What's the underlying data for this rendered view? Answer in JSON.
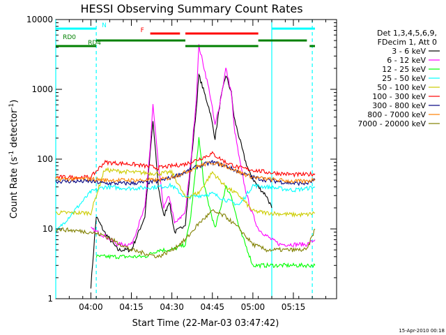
{
  "title": "HESSI Observing Summary Count Rates",
  "footer_date": "15-Apr-2010 00:18",
  "chart_data": {
    "type": "line",
    "title": "HESSI Observing Summary Count Rates",
    "xlabel": "Start Time (22-Mar-03 03:47:42)",
    "ylabel": "Count Rate (s⁻¹ detector⁻¹)",
    "ylabel_main": "Count Rate (s",
    "ylabel_sup1": "-1",
    "ylabel_mid": " detector",
    "ylabel_sup2": "-1",
    "ylabel_end": ")",
    "yscale": "log",
    "ylim": [
      1,
      10000
    ],
    "xlim_minutes_from_0347": [
      0,
      104
    ],
    "x_ticks": [
      "04:00",
      "04:15",
      "04:30",
      "04:45",
      "05:00",
      "05:15"
    ],
    "y_ticks": [
      "1",
      "10",
      "100",
      "1000",
      "10000"
    ],
    "legend_header": [
      "Det 1,3,4,5,6,9,",
      "FDecim 1, Att 0"
    ],
    "series": [
      {
        "name": "3 - 6 keV",
        "color": "#000000",
        "x": [
          "03:47",
          "03:55",
          "03:58",
          "04:00",
          "04:02",
          "04:05",
          "04:10",
          "04:15",
          "04:20",
          "04:23",
          "04:25",
          "04:27",
          "04:29",
          "04:31",
          "04:33",
          "04:35",
          "04:37",
          "04:39",
          "04:40",
          "04:42",
          "04:44",
          "04:46",
          "04:48",
          "04:50",
          "04:52",
          "04:53",
          "04:55",
          "04:57",
          "04:59",
          "05:02",
          "05:05",
          "05:07"
        ],
        "y": [
          null,
          null,
          null,
          1.5,
          15,
          9,
          5,
          5,
          15,
          350,
          40,
          15,
          25,
          9,
          10,
          12,
          80,
          500,
          1600,
          900,
          500,
          200,
          700,
          1600,
          900,
          400,
          200,
          100,
          60,
          40,
          30,
          20
        ]
      },
      {
        "name": "6 - 12 keV",
        "color": "#ff00ff",
        "x": [
          "04:00",
          "04:05",
          "04:10",
          "04:15",
          "04:20",
          "04:22",
          "04:23",
          "04:25",
          "04:27",
          "04:29",
          "04:31",
          "04:33",
          "04:35",
          "04:37",
          "04:39",
          "04:40",
          "04:42",
          "04:44",
          "04:46",
          "04:48",
          "04:50",
          "04:52",
          "04:53",
          "04:55",
          "04:57",
          "04:59",
          "05:02",
          "05:05",
          "05:07",
          "05:10",
          "05:15",
          "05:20",
          "05:23"
        ],
        "y": [
          10,
          8,
          6,
          6,
          20,
          150,
          600,
          80,
          20,
          30,
          12,
          14,
          18,
          90,
          700,
          4200,
          2000,
          900,
          300,
          700,
          2000,
          900,
          300,
          100,
          40,
          20,
          10,
          8,
          7,
          6,
          6,
          6,
          7
        ]
      },
      {
        "name": "12 - 25 keV",
        "color": "#00ff00",
        "x": [
          "04:02",
          "04:10",
          "04:15",
          "04:20",
          "04:25",
          "04:30",
          "04:35",
          "04:37",
          "04:40",
          "04:42",
          "04:44",
          "04:46",
          "04:48",
          "04:50",
          "04:52",
          "04:55",
          "04:58",
          "05:00",
          "05:05",
          "05:10",
          "05:15",
          "05:20",
          "05:23"
        ],
        "y": [
          4,
          4,
          4,
          4,
          5,
          5,
          6,
          15,
          200,
          40,
          20,
          10,
          20,
          40,
          30,
          10,
          5,
          3,
          3,
          3,
          3,
          3,
          3
        ]
      },
      {
        "name": "25 - 50 keV",
        "color": "#00ffff",
        "x": [
          "03:47",
          "04:00",
          "04:05",
          "04:15",
          "04:25",
          "04:30",
          "04:35",
          "04:40",
          "04:45",
          "04:50",
          "04:55",
          "05:00",
          "05:05",
          "05:15",
          "05:20",
          "05:23"
        ],
        "y": [
          9,
          34,
          40,
          38,
          40,
          42,
          28,
          30,
          32,
          26,
          22,
          42,
          40,
          36,
          38,
          40
        ]
      },
      {
        "name": "50 - 100 keV",
        "color": "#cccc00",
        "x": [
          "03:47",
          "04:00",
          "04:05",
          "04:15",
          "04:25",
          "04:30",
          "04:35",
          "04:40",
          "04:45",
          "04:50",
          "04:55",
          "05:00",
          "05:05",
          "05:15",
          "05:20",
          "05:23"
        ],
        "y": [
          17,
          17,
          70,
          65,
          62,
          65,
          28,
          33,
          65,
          40,
          30,
          18,
          17,
          16,
          16,
          17
        ]
      },
      {
        "name": "100 - 300 keV",
        "color": "#ff0000",
        "x": [
          "03:47",
          "04:00",
          "04:05",
          "04:15",
          "04:25",
          "04:30",
          "04:35",
          "04:40",
          "04:45",
          "04:50",
          "04:55",
          "05:00",
          "05:05",
          "05:15",
          "05:20",
          "05:23"
        ],
        "y": [
          55,
          55,
          90,
          85,
          75,
          80,
          85,
          100,
          120,
          90,
          75,
          70,
          65,
          60,
          60,
          62
        ]
      },
      {
        "name": "300 - 800 keV",
        "color": "#000080",
        "x": [
          "03:47",
          "04:00",
          "04:05",
          "04:15",
          "04:25",
          "04:30",
          "04:35",
          "04:40",
          "04:45",
          "04:50",
          "04:55",
          "05:00",
          "05:05",
          "05:15",
          "05:20",
          "05:23"
        ],
        "y": [
          48,
          48,
          45,
          45,
          48,
          55,
          65,
          80,
          90,
          80,
          65,
          55,
          50,
          45,
          45,
          50
        ]
      },
      {
        "name": "800 - 7000 keV",
        "color": "#ff8000",
        "x": [
          "03:47",
          "04:00",
          "04:05",
          "04:15",
          "04:25",
          "04:30",
          "04:35",
          "04:40",
          "04:45",
          "04:50",
          "04:55",
          "05:00",
          "05:05",
          "05:15",
          "05:20",
          "05:23"
        ],
        "y": [
          52,
          52,
          50,
          50,
          50,
          55,
          65,
          80,
          90,
          80,
          65,
          55,
          52,
          48,
          48,
          52
        ]
      },
      {
        "name": "7000 - 20000 keV",
        "color": "#808000",
        "x": [
          "03:47",
          "04:00",
          "04:05",
          "04:15",
          "04:25",
          "04:30",
          "04:35",
          "04:40",
          "04:45",
          "04:50",
          "04:55",
          "05:00",
          "05:05",
          "05:15",
          "05:20",
          "05:23"
        ],
        "y": [
          10,
          9,
          8,
          5,
          4,
          5,
          7,
          12,
          18,
          15,
          10,
          6,
          5,
          5,
          5,
          10
        ]
      }
    ],
    "status_bars": [
      {
        "label": "N",
        "color": "#00ffff",
        "segments": [
          [
            "03:47",
            "04:02"
          ],
          [
            "05:07",
            "05:23"
          ]
        ]
      },
      {
        "label": "F",
        "color": "#ff0000",
        "segments": [
          [
            "04:22",
            "04:33"
          ],
          [
            "04:35",
            "05:02"
          ]
        ]
      },
      {
        "label": "RD0",
        "color": "#008000",
        "segments": [
          [
            "04:02",
            "04:35"
          ],
          [
            "05:02",
            "05:20"
          ]
        ]
      },
      {
        "label": "RD4",
        "color": "#008000",
        "segments": [
          [
            "03:47",
            "04:02"
          ],
          [
            "04:35",
            "05:02"
          ],
          [
            "05:21",
            "05:23"
          ]
        ]
      }
    ],
    "vertical_lines": [
      {
        "time": "03:47",
        "style": "solid",
        "color": "#00ffff"
      },
      {
        "time": "04:02",
        "style": "dashed",
        "color": "#00ffff"
      },
      {
        "time": "05:07",
        "style": "solid",
        "color": "#00ffff"
      },
      {
        "time": "05:22",
        "style": "dashed",
        "color": "#00ffff"
      }
    ],
    "grid": false,
    "legend_position": "right"
  }
}
